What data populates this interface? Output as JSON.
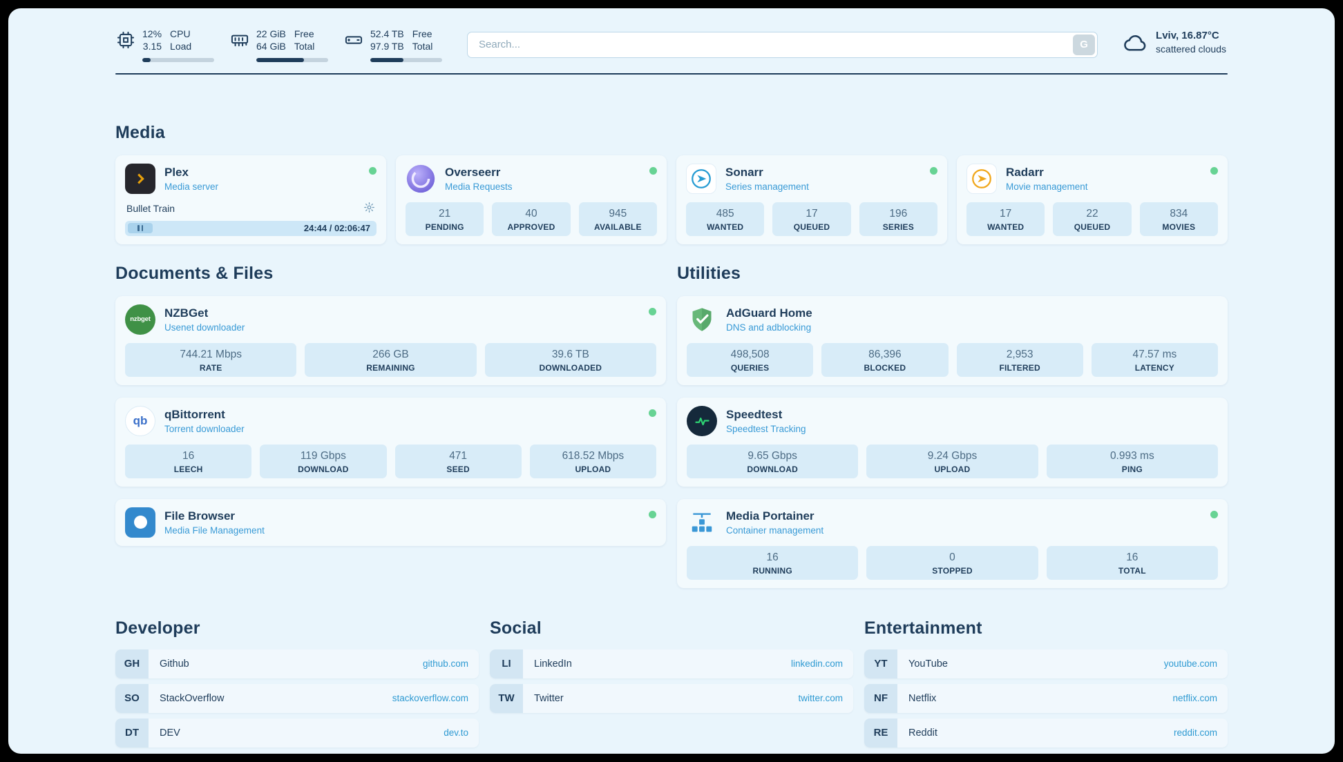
{
  "header": {
    "stats": [
      {
        "values": [
          "12%",
          "3.15"
        ],
        "labels": [
          "CPU",
          "Load"
        ],
        "progress": 12
      },
      {
        "values": [
          "22 GiB",
          "64 GiB"
        ],
        "labels": [
          "Free",
          "Total"
        ],
        "progress": 66
      },
      {
        "values": [
          "52.4 TB",
          "97.9 TB"
        ],
        "labels": [
          "Free",
          "Total"
        ],
        "progress": 46
      }
    ],
    "search": {
      "placeholder": "Search...",
      "button_label": "G"
    },
    "weather": {
      "location": "Lviv, 16.87°C",
      "condition": "scattered clouds"
    }
  },
  "sections": {
    "media": {
      "title": "Media",
      "cards": [
        {
          "name": "Plex",
          "subtitle": "Media server",
          "player": {
            "title": "Bullet Train",
            "time": "24:44 / 02:06:47"
          }
        },
        {
          "name": "Overseerr",
          "subtitle": "Media Requests",
          "stats": [
            {
              "value": "21",
              "label": "PENDING"
            },
            {
              "value": "40",
              "label": "APPROVED"
            },
            {
              "value": "945",
              "label": "AVAILABLE"
            }
          ]
        },
        {
          "name": "Sonarr",
          "subtitle": "Series management",
          "stats": [
            {
              "value": "485",
              "label": "WANTED"
            },
            {
              "value": "17",
              "label": "QUEUED"
            },
            {
              "value": "196",
              "label": "SERIES"
            }
          ]
        },
        {
          "name": "Radarr",
          "subtitle": "Movie management",
          "stats": [
            {
              "value": "17",
              "label": "WANTED"
            },
            {
              "value": "22",
              "label": "QUEUED"
            },
            {
              "value": "834",
              "label": "MOVIES"
            }
          ]
        }
      ]
    },
    "documents": {
      "title": "Documents & Files",
      "cards": [
        {
          "name": "NZBGet",
          "subtitle": "Usenet downloader",
          "stats": [
            {
              "value": "744.21 Mbps",
              "label": "RATE"
            },
            {
              "value": "266 GB",
              "label": "REMAINING"
            },
            {
              "value": "39.6 TB",
              "label": "DOWNLOADED"
            }
          ]
        },
        {
          "name": "qBittorrent",
          "subtitle": "Torrent downloader",
          "stats": [
            {
              "value": "16",
              "label": "LEECH"
            },
            {
              "value": "119 Gbps",
              "label": "DOWNLOAD"
            },
            {
              "value": "471",
              "label": "SEED"
            },
            {
              "value": "618.52 Mbps",
              "label": "UPLOAD"
            }
          ]
        },
        {
          "name": "File Browser",
          "subtitle": "Media File Management"
        }
      ]
    },
    "utilities": {
      "title": "Utilities",
      "cards": [
        {
          "name": "AdGuard Home",
          "subtitle": "DNS and adblocking",
          "stats": [
            {
              "value": "498,508",
              "label": "QUERIES"
            },
            {
              "value": "86,396",
              "label": "BLOCKED"
            },
            {
              "value": "2,953",
              "label": "FILTERED"
            },
            {
              "value": "47.57 ms",
              "label": "LATENCY"
            }
          ]
        },
        {
          "name": "Speedtest",
          "subtitle": "Speedtest Tracking",
          "stats": [
            {
              "value": "9.65 Gbps",
              "label": "DOWNLOAD"
            },
            {
              "value": "9.24 Gbps",
              "label": "UPLOAD"
            },
            {
              "value": "0.993 ms",
              "label": "PING"
            }
          ]
        },
        {
          "name": "Media Portainer",
          "subtitle": "Container management",
          "stats": [
            {
              "value": "16",
              "label": "RUNNING"
            },
            {
              "value": "0",
              "label": "STOPPED"
            },
            {
              "value": "16",
              "label": "TOTAL"
            }
          ]
        }
      ]
    },
    "bookmarks": [
      {
        "title": "Developer",
        "items": [
          {
            "abbr": "GH",
            "name": "Github",
            "url": "github.com"
          },
          {
            "abbr": "SO",
            "name": "StackOverflow",
            "url": "stackoverflow.com"
          },
          {
            "abbr": "DT",
            "name": "DEV",
            "url": "dev.to"
          }
        ]
      },
      {
        "title": "Social",
        "items": [
          {
            "abbr": "LI",
            "name": "LinkedIn",
            "url": "linkedin.com"
          },
          {
            "abbr": "TW",
            "name": "Twitter",
            "url": "twitter.com"
          }
        ]
      },
      {
        "title": "Entertainment",
        "items": [
          {
            "abbr": "YT",
            "name": "YouTube",
            "url": "youtube.com"
          },
          {
            "abbr": "NF",
            "name": "Netflix",
            "url": "netflix.com"
          },
          {
            "abbr": "RE",
            "name": "Reddit",
            "url": "reddit.com"
          }
        ]
      }
    ]
  },
  "colors": {
    "accent_blue": "#389ad6",
    "status_green": "#67d394",
    "navy": "#1e3c5a"
  }
}
